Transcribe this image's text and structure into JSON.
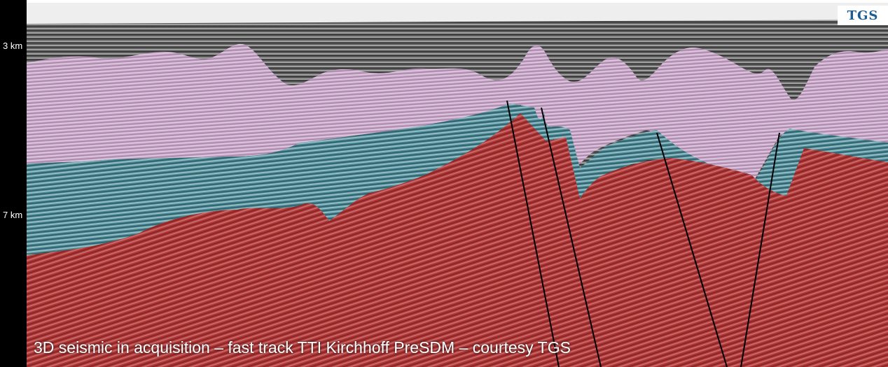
{
  "depth_labels": {
    "top": "3 km",
    "bottom": "7 km"
  },
  "caption": "3D seismic in acquisition – fast track TTI Kirchhoff PreSDM – courtesy TGS",
  "logo": {
    "text": "TGS"
  },
  "colors": {
    "water_column": "#6e6e6e",
    "salt_pink": "#c8a6c8",
    "teal_layer": "#4f8f9a",
    "red_basement": "#b03a3a",
    "fault_lines": "#000000"
  }
}
